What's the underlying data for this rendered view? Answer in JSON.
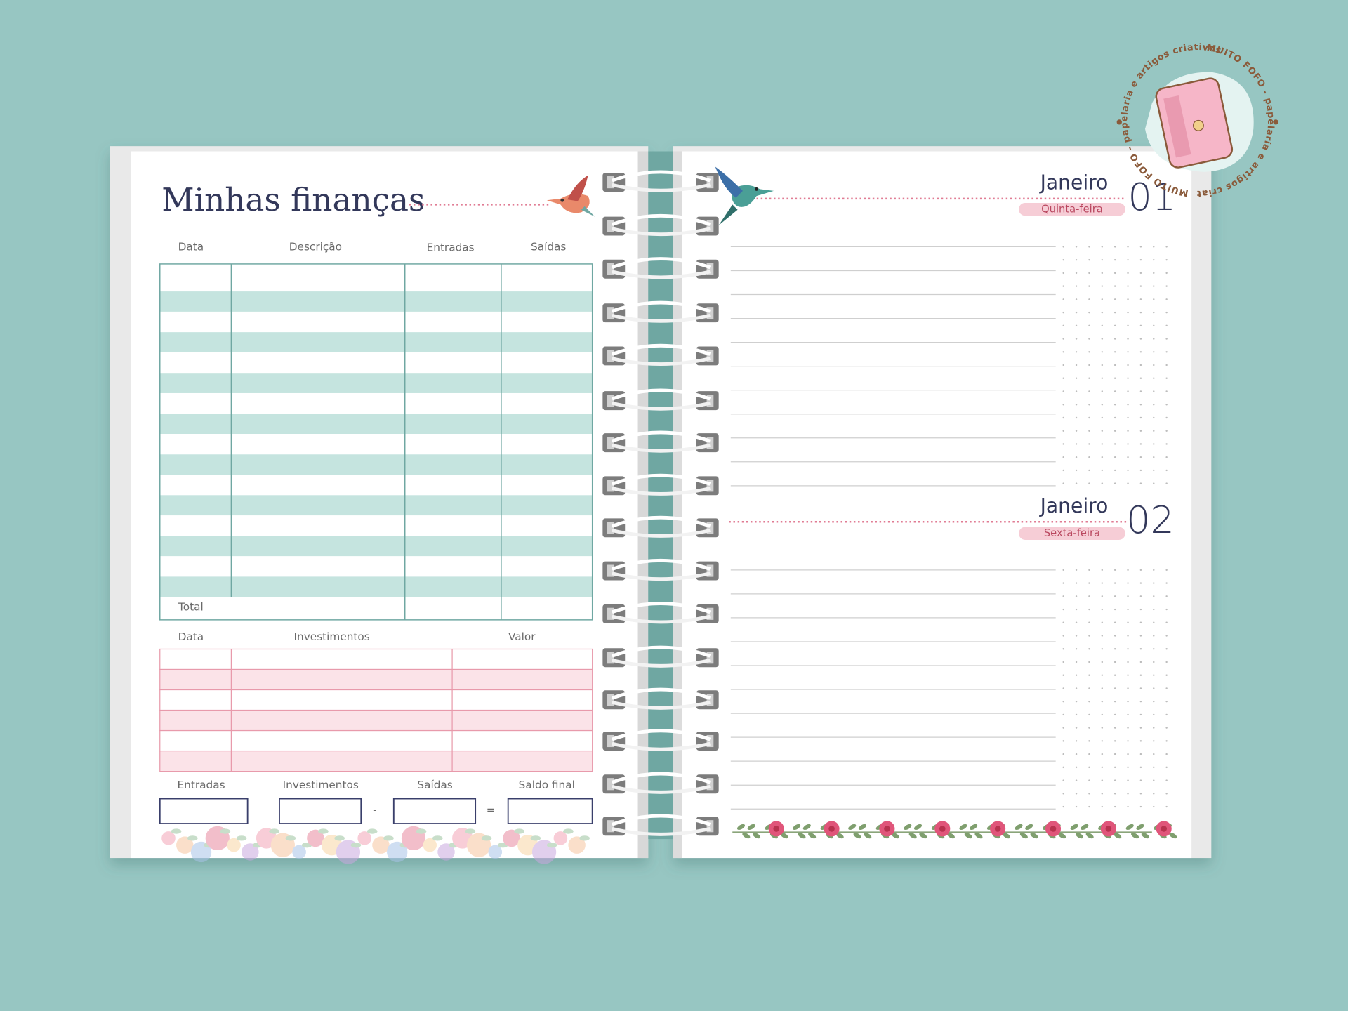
{
  "logo": {
    "text": "MUITO FOFO - papelaria e artigos criativos"
  },
  "finance_page": {
    "title": "Minhas finanças",
    "ledger": {
      "headers": [
        "Data",
        "Descrição",
        "Entradas",
        "Saídas"
      ],
      "total_label": "Total"
    },
    "investments": {
      "headers": [
        "Data",
        "Investimentos",
        "Valor"
      ]
    },
    "summary": {
      "labels": [
        "Entradas",
        "Investimentos",
        "Saídas",
        "Saldo final"
      ],
      "operators": [
        "-",
        "="
      ]
    }
  },
  "planner_page": {
    "days": [
      {
        "month": "Janeiro",
        "day": "01",
        "weekday": "Quinta-feira"
      },
      {
        "month": "Janeiro",
        "day": "02",
        "weekday": "Sexta-feira"
      }
    ]
  }
}
